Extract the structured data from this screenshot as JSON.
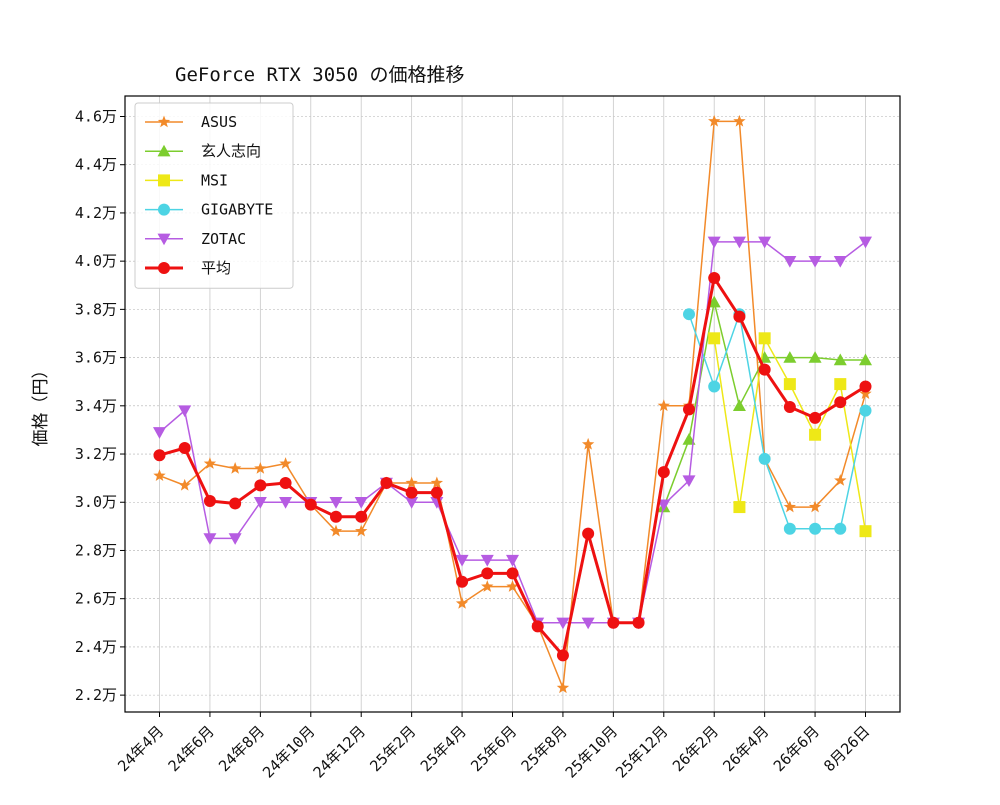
{
  "chart_data": {
    "type": "line",
    "title": "GeForce RTX 3050 の価格推移",
    "xlabel": "",
    "ylabel": "価格（円）",
    "ylim": [
      21300,
      46850
    ],
    "yticks": [
      22000,
      24000,
      26000,
      28000,
      30000,
      32000,
      34000,
      36000,
      38000,
      40000,
      42000,
      44000,
      46000
    ],
    "ytick_labels": [
      "2.2万",
      "2.4万",
      "2.6万",
      "2.8万",
      "3.0万",
      "3.2万",
      "3.4万",
      "3.6万",
      "3.8万",
      "4.0万",
      "4.2万",
      "4.4万",
      "4.6万"
    ],
    "x": [
      "24年4月",
      "24年5月",
      "24年6月",
      "24年7月",
      "24年8月",
      "24年9月",
      "24年10月",
      "24年11月",
      "24年12月",
      "25年1月",
      "25年2月",
      "25年3月",
      "25年4月",
      "25年5月",
      "25年6月",
      "25年7月",
      "25年8月",
      "25年9月",
      "25年10月",
      "25年11月",
      "25年12月",
      "26年1月",
      "26年2月",
      "26年3月",
      "26年4月",
      "26年5月",
      "26年6月",
      "26年7月",
      "8月26日"
    ],
    "xticks": [
      "24年4月",
      "24年6月",
      "24年8月",
      "24年10月",
      "24年12月",
      "25年2月",
      "25年4月",
      "25年6月",
      "25年8月",
      "25年10月",
      "25年12月",
      "26年2月",
      "26年4月",
      "26年6月",
      "8月26日"
    ],
    "grid": true,
    "legend_position": "top-left",
    "series": [
      {
        "name": "ASUS",
        "color": "#f28a2a",
        "marker": "star",
        "line_width": 1.5,
        "values": [
          31100,
          30700,
          31600,
          31400,
          31400,
          31600,
          29900,
          28800,
          28800,
          30800,
          30800,
          30800,
          25800,
          26500,
          26500,
          24900,
          22300,
          32400,
          25000,
          25000,
          34000,
          34000,
          45800,
          45800,
          31800,
          29800,
          29800,
          30900,
          34500
        ]
      },
      {
        "name": "玄人志向",
        "color": "#7ccd2e",
        "marker": "triangle-up",
        "line_width": 1.5,
        "values": [
          null,
          null,
          null,
          null,
          null,
          null,
          null,
          null,
          null,
          null,
          null,
          null,
          null,
          null,
          null,
          null,
          null,
          null,
          null,
          null,
          29800,
          32600,
          38300,
          34000,
          36000,
          36000,
          36000,
          35900,
          35900
        ]
      },
      {
        "name": "MSI",
        "color": "#eee817",
        "marker": "square",
        "line_width": 1.5,
        "values": [
          null,
          null,
          null,
          null,
          null,
          null,
          null,
          null,
          null,
          null,
          null,
          null,
          null,
          null,
          null,
          null,
          null,
          null,
          null,
          null,
          null,
          null,
          36800,
          29800,
          36800,
          34900,
          32800,
          34900,
          28800
        ]
      },
      {
        "name": "GIGABYTE",
        "color": "#4dd4e4",
        "marker": "circle",
        "line_width": 1.5,
        "values": [
          null,
          null,
          null,
          null,
          null,
          null,
          null,
          null,
          null,
          null,
          null,
          null,
          null,
          null,
          null,
          null,
          null,
          null,
          null,
          null,
          null,
          37800,
          34800,
          37800,
          31800,
          28900,
          28900,
          28900,
          33800
        ]
      },
      {
        "name": "ZOTAC",
        "color": "#b65ce2",
        "marker": "triangle-down",
        "line_width": 1.5,
        "values": [
          32900,
          33800,
          28500,
          28500,
          30000,
          30000,
          30000,
          30000,
          30000,
          30800,
          30000,
          30000,
          27600,
          27600,
          27600,
          25000,
          25000,
          25000,
          25000,
          25000,
          29900,
          30900,
          40800,
          40800,
          40800,
          40000,
          40000,
          40000,
          40800
        ]
      },
      {
        "name": "平均",
        "color": "#ee1111",
        "marker": "circle",
        "line_width": 3,
        "values": [
          31950,
          32250,
          30050,
          29950,
          30700,
          30800,
          29900,
          29400,
          29400,
          30800,
          30400,
          30400,
          26700,
          27050,
          27050,
          24850,
          23650,
          28700,
          25000,
          25000,
          31250,
          33850,
          39300,
          37700,
          35500,
          33950,
          33500,
          34150,
          34800
        ]
      }
    ]
  }
}
